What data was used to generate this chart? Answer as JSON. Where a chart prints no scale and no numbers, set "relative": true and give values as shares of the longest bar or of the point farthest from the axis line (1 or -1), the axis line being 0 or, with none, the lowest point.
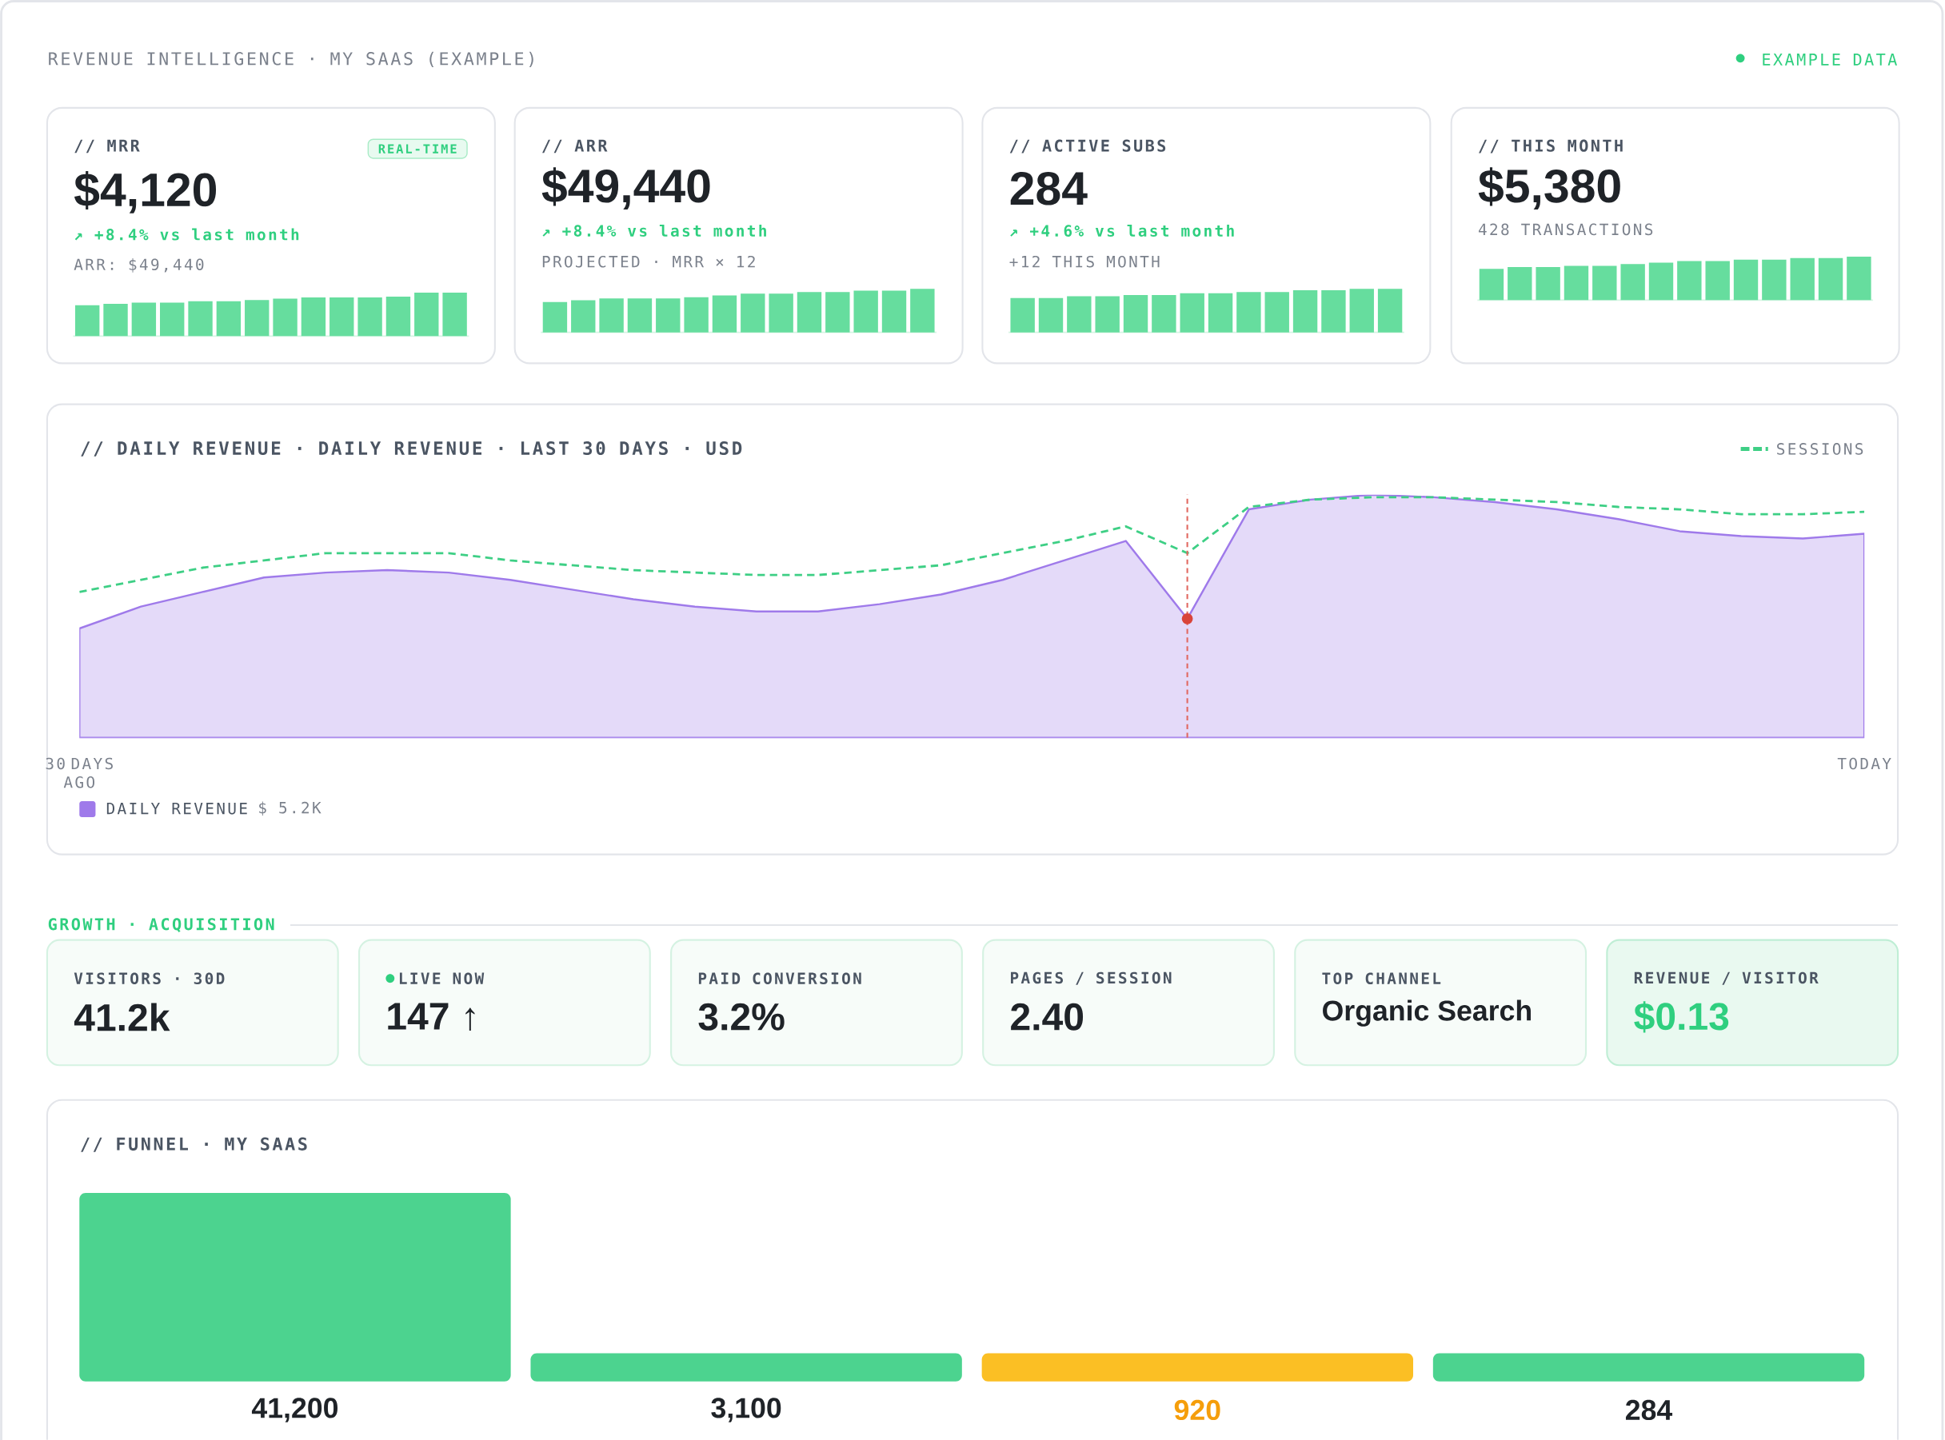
{
  "chart_data": [
    {
      "type": "other",
      "title": "REVENUE INTELLIGENCE · MY SAAS (EXAMPLE)",
      "annotations": [
        "EXAMPLE DATA"
      ]
    },
    {
      "type": "bar",
      "relative": true,
      "title": "// MRR",
      "subtitle": "REAL-TIME",
      "annotations": [
        "$4,120",
        "↗ +8.4% vs last month",
        "ARR: $49,440"
      ],
      "color": "#66dd9e",
      "categories": [
        null,
        null,
        null,
        null,
        null,
        null,
        null,
        null,
        null,
        null,
        null,
        null,
        null,
        null
      ],
      "values": [
        0.71,
        0.74,
        0.77,
        0.77,
        0.8,
        0.8,
        0.83,
        0.86,
        0.89,
        0.89,
        0.89,
        0.91,
        1,
        1
      ]
    },
    {
      "type": "bar",
      "relative": true,
      "title": "// ARR",
      "annotations": [
        "$49,440",
        "↗ +8.4% vs last month",
        "PROJECTED · MRR × 12"
      ],
      "color": "#66dd9e",
      "categories": [
        null,
        null,
        null,
        null,
        null,
        null,
        null,
        null,
        null,
        null,
        null,
        null,
        null,
        null
      ],
      "values": [
        0.7,
        0.74,
        0.78,
        0.78,
        0.78,
        0.81,
        0.85,
        0.89,
        0.89,
        0.93,
        0.93,
        0.96,
        0.96,
        1
      ]
    },
    {
      "type": "bar",
      "relative": true,
      "title": "// ACTIVE SUBS",
      "annotations": [
        "284",
        "↗ +4.6% vs last month",
        "+12 THIS MONTH"
      ],
      "color": "#66dd9e",
      "categories": [
        null,
        null,
        null,
        null,
        null,
        null,
        null,
        null,
        null,
        null,
        null,
        null,
        null,
        null
      ],
      "values": [
        0.79,
        0.79,
        0.83,
        0.83,
        0.86,
        0.86,
        0.9,
        0.9,
        0.93,
        0.93,
        0.97,
        0.97,
        1,
        1
      ]
    },
    {
      "type": "bar",
      "relative": true,
      "title": "// THIS MONTH",
      "annotations": [
        "$5,380",
        "428 TRANSACTIONS"
      ],
      "color": "#66dd9e",
      "categories": [
        null,
        null,
        null,
        null,
        null,
        null,
        null,
        null,
        null,
        null,
        null,
        null,
        null,
        null
      ],
      "values": [
        0.72,
        0.76,
        0.76,
        0.79,
        0.79,
        0.83,
        0.86,
        0.9,
        0.9,
        0.93,
        0.93,
        0.97,
        0.97,
        1
      ]
    },
    {
      "type": "area",
      "relative": true,
      "title": "// DAILY REVENUE · DAILY REVENUE · LAST 30 DAYS · USD",
      "annotations": [
        "$ 5.2K"
      ],
      "legend": "bottom left",
      "line_style": "dashed",
      "categories": [
        "30 DAYS AGO",
        null,
        null,
        null,
        null,
        null,
        null,
        null,
        null,
        null,
        null,
        null,
        null,
        null,
        null,
        null,
        null,
        null,
        null,
        null,
        null,
        null,
        null,
        null,
        null,
        null,
        null,
        null,
        null,
        "TODAY"
      ],
      "series": [
        {
          "type": "area",
          "name": "DAILY REVENUE",
          "color": "#9f7aea",
          "values": [
            0.45,
            0.54,
            0.6,
            0.66,
            0.68,
            0.69,
            0.68,
            0.65,
            0.61,
            0.57,
            0.54,
            0.52,
            0.52,
            0.55,
            0.59,
            0.65,
            0.73,
            0.81,
            0.49,
            0.94,
            0.98,
            1,
            0.99,
            0.97,
            0.94,
            0.9,
            0.85,
            0.83,
            0.82,
            0.84
          ]
        },
        {
          "type": "line",
          "name": "SESSIONS",
          "color": "#3ecf85",
          "values": [
            0.6,
            0.65,
            0.7,
            0.73,
            0.76,
            0.76,
            0.76,
            0.73,
            0.71,
            0.69,
            0.68,
            0.67,
            0.67,
            0.69,
            0.71,
            0.76,
            0.81,
            0.87,
            0.76,
            0.95,
            0.98,
            0.99,
            0.99,
            0.98,
            0.97,
            0.95,
            0.94,
            0.92,
            0.92,
            0.93
          ]
        },
        {
          "type": "scatter",
          "color": "#d9443a",
          "values": [
            null,
            null,
            null,
            null,
            null,
            null,
            null,
            null,
            null,
            null,
            null,
            null,
            null,
            null,
            null,
            null,
            null,
            null,
            0.49,
            null,
            null,
            null,
            null,
            null,
            null,
            null,
            null,
            null,
            null,
            null
          ]
        }
      ]
    },
    {
      "type": "other",
      "title": "GROWTH · ACQUISITION",
      "annotations": [
        "VISITORS · 30D",
        "41.2k",
        "LIVE NOW",
        "147 ↑",
        "PAID CONVERSION",
        "3.2%",
        "PAGES / SESSION",
        "2.40",
        "TOP CHANNEL",
        "Organic Search",
        "REVENUE / VISITOR",
        "$0.13"
      ]
    },
    {
      "type": "other",
      "title": "// FUNNEL · MY SAAS",
      "categories": [
        null,
        null,
        null,
        null
      ],
      "values": [
        41200,
        3100,
        920,
        284
      ],
      "value_labels": [
        "41,200",
        "3,100",
        "920",
        "284"
      ],
      "colors": [
        "#4cd38f",
        "#4cd38f",
        "#fbbf24",
        "#4cd38f"
      ]
    }
  ]
}
